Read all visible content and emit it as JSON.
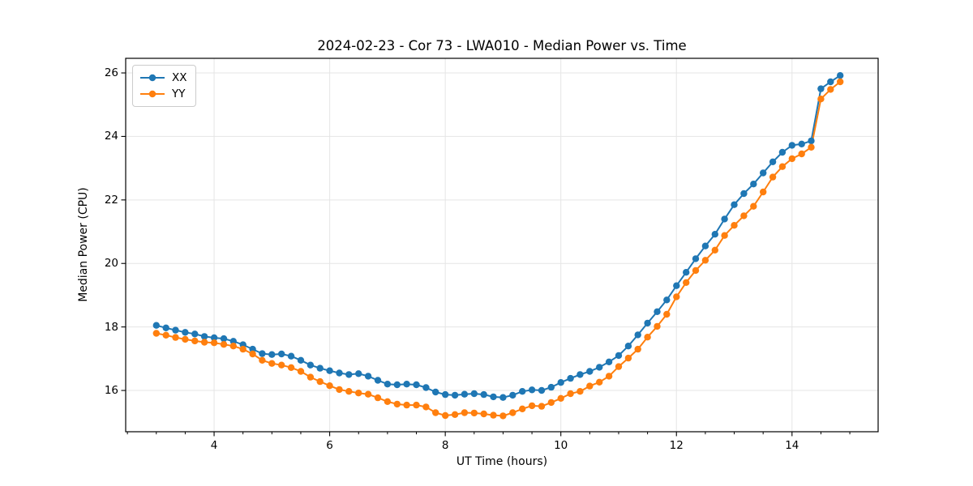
{
  "title": "2024-02-23 - Cor 73 - LWA010 - Median Power vs. Time",
  "chart_data": {
    "type": "line",
    "title": "2024-02-23 - Cor 73 - LWA010 - Median Power vs. Time",
    "xlabel": "UT Time (hours)",
    "ylabel": "Median Power (CPU)",
    "xlim": [
      2.47,
      15.49
    ],
    "ylim": [
      14.7,
      26.46
    ],
    "xticks": [
      4,
      6,
      8,
      10,
      12,
      14
    ],
    "yticks": [
      16,
      18,
      20,
      22,
      24,
      26
    ],
    "minor_xtick_step": 0.5,
    "grid": true,
    "legend_position": "upper-left",
    "marker": "circle",
    "x": [
      3.0,
      3.167,
      3.333,
      3.5,
      3.667,
      3.833,
      4.0,
      4.167,
      4.333,
      4.5,
      4.667,
      4.833,
      5.0,
      5.167,
      5.333,
      5.5,
      5.667,
      5.833,
      6.0,
      6.167,
      6.333,
      6.5,
      6.667,
      6.833,
      7.0,
      7.167,
      7.333,
      7.5,
      7.667,
      7.833,
      8.0,
      8.167,
      8.333,
      8.5,
      8.667,
      8.833,
      9.0,
      9.167,
      9.333,
      9.5,
      9.667,
      9.833,
      10.0,
      10.167,
      10.333,
      10.5,
      10.667,
      10.833,
      11.0,
      11.167,
      11.333,
      11.5,
      11.667,
      11.833,
      12.0,
      12.167,
      12.333,
      12.5,
      12.667,
      12.833,
      13.0,
      13.167,
      13.333,
      13.5,
      13.667,
      13.833,
      14.0,
      14.167,
      14.333,
      14.5,
      14.667,
      14.833
    ],
    "series": [
      {
        "name": "XX",
        "color": "#1f77b4",
        "values": [
          18.05,
          17.97,
          17.9,
          17.83,
          17.78,
          17.7,
          17.66,
          17.63,
          17.55,
          17.44,
          17.3,
          17.16,
          17.13,
          17.15,
          17.08,
          16.95,
          16.8,
          16.7,
          16.62,
          16.55,
          16.5,
          16.53,
          16.45,
          16.32,
          16.2,
          16.18,
          16.2,
          16.18,
          16.09,
          15.95,
          15.87,
          15.85,
          15.88,
          15.9,
          15.87,
          15.8,
          15.78,
          15.85,
          15.97,
          16.02,
          16.0,
          16.1,
          16.25,
          16.38,
          16.5,
          16.6,
          16.73,
          16.9,
          17.1,
          17.4,
          17.75,
          18.12,
          18.48,
          18.85,
          19.3,
          19.72,
          20.15,
          20.55,
          20.92,
          21.4,
          21.85,
          22.2,
          22.5,
          22.85,
          23.2,
          23.5,
          23.72,
          23.76,
          23.86,
          25.5,
          25.72,
          25.92
        ]
      },
      {
        "name": "YY",
        "color": "#ff7f0e",
        "values": [
          17.8,
          17.74,
          17.67,
          17.61,
          17.56,
          17.52,
          17.5,
          17.45,
          17.4,
          17.3,
          17.15,
          16.95,
          16.85,
          16.8,
          16.72,
          16.6,
          16.42,
          16.28,
          16.15,
          16.03,
          15.97,
          15.92,
          15.88,
          15.77,
          15.65,
          15.57,
          15.54,
          15.54,
          15.48,
          15.3,
          15.21,
          15.24,
          15.3,
          15.29,
          15.26,
          15.22,
          15.2,
          15.3,
          15.42,
          15.52,
          15.5,
          15.62,
          15.75,
          15.9,
          15.97,
          16.14,
          16.26,
          16.45,
          16.75,
          17.02,
          17.3,
          17.68,
          18.02,
          18.4,
          18.95,
          19.4,
          19.78,
          20.1,
          20.42,
          20.88,
          21.2,
          21.5,
          21.8,
          22.25,
          22.72,
          23.05,
          23.3,
          23.45,
          23.66,
          25.18,
          25.48,
          25.72
        ]
      }
    ]
  },
  "style": {
    "grid_color": "#e5e5e5",
    "spine_color": "#000000",
    "background": "#ffffff"
  }
}
